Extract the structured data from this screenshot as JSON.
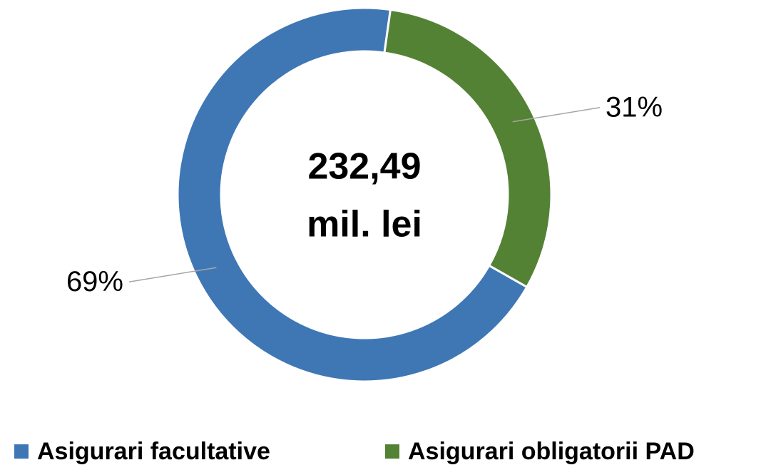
{
  "chart_data": {
    "type": "pie",
    "donut": true,
    "categories": [
      "Asigurari facultative",
      "Asigurari obligatorii PAD"
    ],
    "values": [
      69,
      31
    ],
    "value_labels": [
      "69%",
      "31%"
    ],
    "colors": [
      "#3f77b5",
      "#548235"
    ],
    "center_label": [
      "232,49",
      "mil. lei"
    ],
    "legend": "bottom"
  }
}
